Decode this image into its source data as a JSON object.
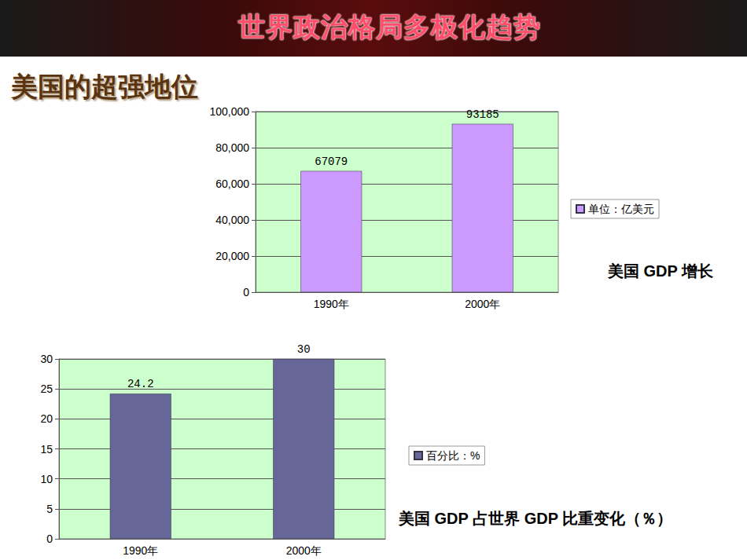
{
  "slide": {
    "banner": "世界政治格局多极化趋势",
    "heading": "美国的超强地位"
  },
  "chart_data": [
    {
      "type": "bar",
      "title": "美国 GDP 增长",
      "categories": [
        "1990年",
        "2000年"
      ],
      "series": [
        {
          "name": "单位：亿美元",
          "color": "#cc99ff",
          "values": [
            67079,
            93185
          ]
        }
      ],
      "ylim": [
        0,
        100000
      ],
      "yticks": [
        0,
        20000,
        40000,
        60000,
        80000,
        100000
      ],
      "grid": true,
      "data_labels": true,
      "legend": "right"
    },
    {
      "type": "bar",
      "title": "美国 GDP 占世界 GDP 比重变化（％）",
      "categories": [
        "1990年",
        "2000年"
      ],
      "series": [
        {
          "name": "百分比：%",
          "color": "#666699",
          "values": [
            24.2,
            30
          ]
        }
      ],
      "ylim": [
        0,
        30
      ],
      "yticks": [
        0,
        5,
        10,
        15,
        20,
        25,
        30
      ],
      "grid": true,
      "data_labels": true,
      "legend": "right"
    }
  ]
}
